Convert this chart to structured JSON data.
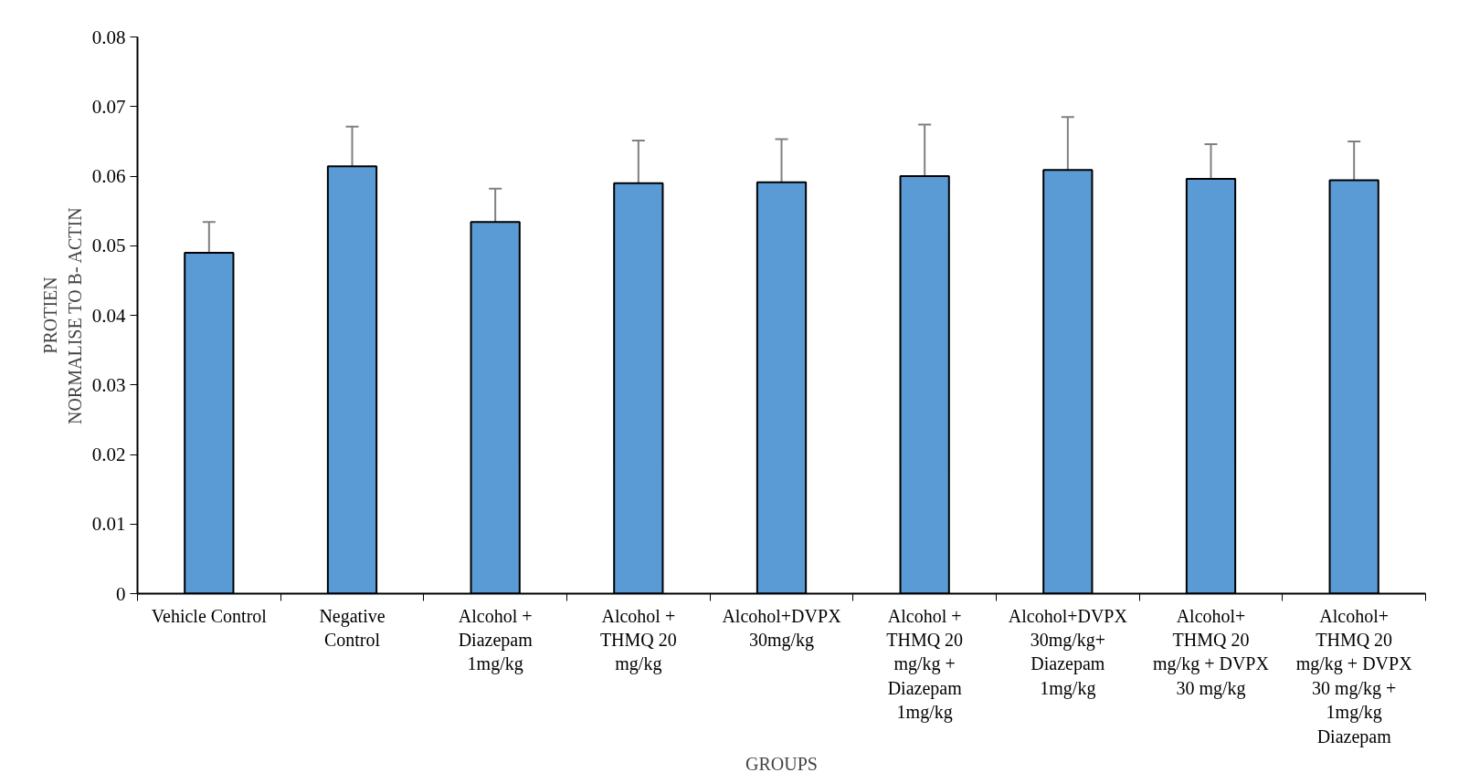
{
  "chart_data": {
    "type": "bar",
    "categories": [
      "Vehicle Control",
      "Negative\nControl",
      "Alcohol +\nDiazepam\n1mg/kg",
      "Alcohol +\nTHMQ 20\nmg/kg",
      "Alcohol+DVPX\n30mg/kg",
      "Alcohol +\nTHMQ 20\nmg/kg +\nDiazepam\n1mg/kg",
      "Alcohol+DVPX\n30mg/kg+\nDiazepam\n1mg/kg",
      "Alcohol+\nTHMQ 20\nmg/kg + DVPX\n30 mg/kg",
      "Alcohol+\nTHMQ 20\nmg/kg + DVPX\n30 mg/kg +\n1mg/kg\nDiazepam"
    ],
    "values": [
      0.049,
      0.0614,
      0.0534,
      0.059,
      0.0591,
      0.06,
      0.0609,
      0.0596,
      0.0594
    ],
    "errors": [
      [
        0.049,
        0.0534
      ],
      [
        0.0614,
        0.0671
      ],
      [
        0.0534,
        0.0582
      ],
      [
        0.059,
        0.0651
      ],
      [
        0.0591,
        0.0653
      ],
      [
        0.06,
        0.0674
      ],
      [
        0.0609,
        0.0685
      ],
      [
        0.0596,
        0.0646
      ],
      [
        0.0594,
        0.065
      ]
    ],
    "color": "#5b9bd5",
    "xlabel": "GROUPS",
    "ylabel": "PROTIEN\nNORMALISE TO B- ACTIN",
    "ylim": [
      0,
      0.08
    ],
    "yticks": [
      0,
      0.01,
      0.02,
      0.03,
      0.04,
      0.05,
      0.06,
      0.07,
      0.08
    ],
    "grid": false
  }
}
